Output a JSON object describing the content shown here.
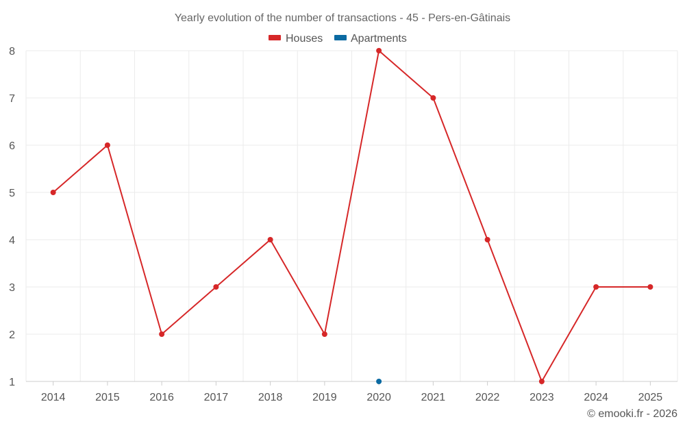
{
  "chart_data": {
    "type": "line",
    "title": "Yearly evolution of the number of transactions - 45 - Pers-en-Gâtinais",
    "categories": [
      "2014",
      "2015",
      "2016",
      "2017",
      "2018",
      "2019",
      "2020",
      "2021",
      "2022",
      "2023",
      "2024",
      "2025"
    ],
    "y_ticks": [
      "1",
      "2",
      "3",
      "4",
      "5",
      "6",
      "7",
      "8"
    ],
    "ylim": [
      1,
      8
    ],
    "grid": true,
    "legend_position": "top-center",
    "series": [
      {
        "name": "Houses",
        "color": "#d62728",
        "values": [
          5,
          6,
          2,
          3,
          4,
          2,
          8,
          7,
          4,
          1,
          3,
          3
        ]
      },
      {
        "name": "Apartments",
        "color": "#0b6aa2",
        "values": [
          null,
          null,
          null,
          null,
          null,
          null,
          1,
          null,
          null,
          null,
          null,
          null
        ]
      }
    ],
    "credit": "© emooki.fr - 2026"
  }
}
